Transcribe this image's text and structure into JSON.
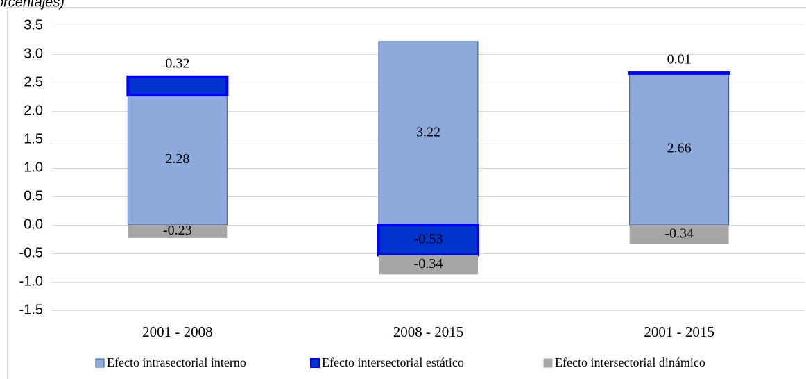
{
  "chart_data": {
    "type": "bar",
    "stacked": true,
    "title": "orcentajes)",
    "categories": [
      "2001 - 2008",
      "2008 - 2015",
      "2001 - 2015"
    ],
    "series": [
      {
        "name": "Efecto intrasectorial interno",
        "color": "#8eaadb",
        "values": [
          2.28,
          3.22,
          2.66
        ]
      },
      {
        "name": "Efecto intersectorial estático",
        "color": "#0033cc",
        "values": [
          0.32,
          -0.53,
          0.01
        ]
      },
      {
        "name": "Efecto intersectorial dinámico",
        "color": "#a6a6a6",
        "values": [
          -0.23,
          -0.34,
          -0.34
        ]
      }
    ],
    "ylim": [
      -1.5,
      3.5
    ],
    "yticks": [
      -1.5,
      {
        "value": -1,
        "label": "-1.0"
      },
      -0.5,
      {
        "value": 0,
        "label": "0.0"
      },
      0.5,
      {
        "value": 1,
        "label": "1.0"
      },
      1.5,
      {
        "value": 2,
        "label": "2.0"
      },
      2.5,
      {
        "value": 3,
        "label": "3.0"
      },
      3.5
    ],
    "grid": true,
    "legend": "bottom"
  }
}
